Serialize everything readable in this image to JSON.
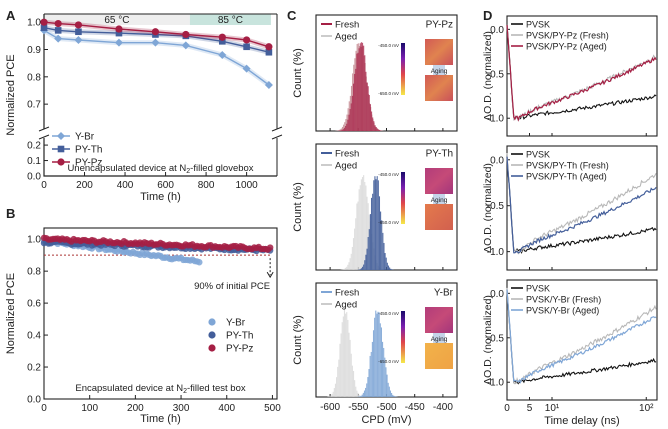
{
  "colors": {
    "ybr": "#7fa6d6",
    "pyth": "#435e9a",
    "pypz": "#a51f44",
    "pvsk": "#111111",
    "grey": "#c8c8c8",
    "band65": "#eeeeee",
    "band85": "#c8e4dd"
  },
  "chart_data": [
    {
      "panel": "A",
      "type": "line",
      "title": "Unencapsulated device at N2-filled glovebox",
      "xlabel": "Time (h)",
      "ylabel": "Normalized PCE",
      "xlim": [
        0,
        1150
      ],
      "ylim_upper": [
        0.62,
        1.03
      ],
      "ylim_lower": [
        0,
        0.22
      ],
      "xticks": [
        "0",
        "200",
        "400",
        "600",
        "800",
        "1000"
      ],
      "yticks_upper": [
        "0.7",
        "0.8",
        "0.9",
        "1.0"
      ],
      "yticks_lower": [
        "0.0",
        "0.1",
        "0.2"
      ],
      "bands": [
        {
          "label": "65 °C",
          "from": 0,
          "to": 720
        },
        {
          "label": "85 °C",
          "from": 720,
          "to": 1120
        }
      ],
      "series": [
        {
          "name": "Y-Br",
          "key": "ybr",
          "x": [
            0,
            70,
            170,
            370,
            550,
            700,
            880,
            1000,
            1110
          ],
          "y": [
            0.97,
            0.94,
            0.935,
            0.925,
            0.925,
            0.915,
            0.88,
            0.83,
            0.77
          ]
        },
        {
          "name": "PY-Th",
          "key": "pyth",
          "x": [
            0,
            70,
            170,
            370,
            550,
            700,
            880,
            1000,
            1110
          ],
          "y": [
            0.98,
            0.97,
            0.965,
            0.96,
            0.955,
            0.95,
            0.93,
            0.91,
            0.89
          ]
        },
        {
          "name": "PY-Pz",
          "key": "pypz",
          "x": [
            0,
            70,
            170,
            370,
            550,
            700,
            880,
            1000,
            1110
          ],
          "y": [
            1.0,
            0.995,
            0.99,
            0.975,
            0.965,
            0.955,
            0.945,
            0.935,
            0.91
          ]
        }
      ]
    },
    {
      "panel": "B",
      "type": "scatter",
      "title": "Encapsulated device at N2-filled test box",
      "xlabel": "Time (h)",
      "ylabel": "Normalized PCE",
      "xlim": [
        0,
        510
      ],
      "ylim": [
        0,
        1.07
      ],
      "xticks": [
        "0",
        "100",
        "200",
        "300",
        "400",
        "500"
      ],
      "yticks": [
        "0.0",
        "0.2",
        "0.4",
        "0.6",
        "0.8",
        "1.0"
      ],
      "reference_line": {
        "y": 0.9,
        "label": "90% of initial PCE"
      },
      "series": [
        {
          "name": "Y-Br",
          "key": "ybr",
          "x_end": 340,
          "y_start": 0.99,
          "y_end": 0.86
        },
        {
          "name": "PY-Th",
          "key": "pyth",
          "x_end": 495,
          "y_start": 0.98,
          "y_end": 0.93
        },
        {
          "name": "PY-Pz",
          "key": "pypz",
          "x_end": 495,
          "y_start": 1.0,
          "y_end": 0.94
        }
      ]
    },
    {
      "panel": "C",
      "type": "histogram",
      "xlabel": "CPD (mV)",
      "ylabel": "Count (%)",
      "xlim": [
        -625,
        -375
      ],
      "xticks": [
        "-600",
        "-550",
        "-500",
        "-450",
        "-400"
      ],
      "colorbar": {
        "top": "-450.0 mV",
        "bottom": "-650.0 mV"
      },
      "aging_label": "Aging",
      "subplots": [
        {
          "name": "PY-Pz",
          "key": "pypz",
          "fresh_label": "Fresh",
          "aged_label": "Aged",
          "fresh": {
            "mean": -547,
            "sd": 11
          },
          "aged": {
            "mean": -549,
            "sd": 12
          }
        },
        {
          "name": "PY-Th",
          "key": "pyth",
          "fresh_label": "Fresh",
          "aged_label": "Aged",
          "fresh": {
            "mean": -520,
            "sd": 9
          },
          "aged": {
            "mean": -543,
            "sd": 11
          }
        },
        {
          "name": "Y-Br",
          "key": "ybr",
          "fresh_label": "Fresh",
          "aged_label": "Aged",
          "fresh": {
            "mean": -517,
            "sd": 10
          },
          "aged": {
            "mean": -574,
            "sd": 9
          }
        }
      ]
    },
    {
      "panel": "D",
      "type": "line",
      "xlabel": "Time delay (ns)",
      "ylabel": "ΔO.D. (normalized)",
      "xscale": "linear below 10, log above",
      "xlim": [
        0,
        130
      ],
      "ylim": [
        -1.2,
        0.15
      ],
      "xticks": [
        "0",
        "5",
        "10¹",
        "10²"
      ],
      "yticks": [
        "-1.0",
        "-0.5",
        "0.0"
      ],
      "subplots": [
        {
          "legend": [
            "PVSK",
            "PVSK/PY-Pz (Fresh)",
            "PVSK/PY-Pz (Aged)"
          ],
          "end_values": {
            "pvsk": -0.75,
            "fresh": -0.3,
            "aged": -0.32
          }
        },
        {
          "legend": [
            "PVSK",
            "PVSK/PY-Th (Fresh)",
            "PVSK/PY-Th (Aged)"
          ],
          "end_values": {
            "pvsk": -0.75,
            "fresh": -0.15,
            "aged": -0.3
          }
        },
        {
          "legend": [
            "PVSK",
            "PVSK/Y-Br (Fresh)",
            "PVSK/Y-Br (Aged)"
          ],
          "end_values": {
            "pvsk": -0.75,
            "fresh": -0.15,
            "aged": -0.25
          }
        }
      ]
    }
  ],
  "labels": {
    "A": "A",
    "B": "B",
    "C": "C",
    "D": "D"
  }
}
